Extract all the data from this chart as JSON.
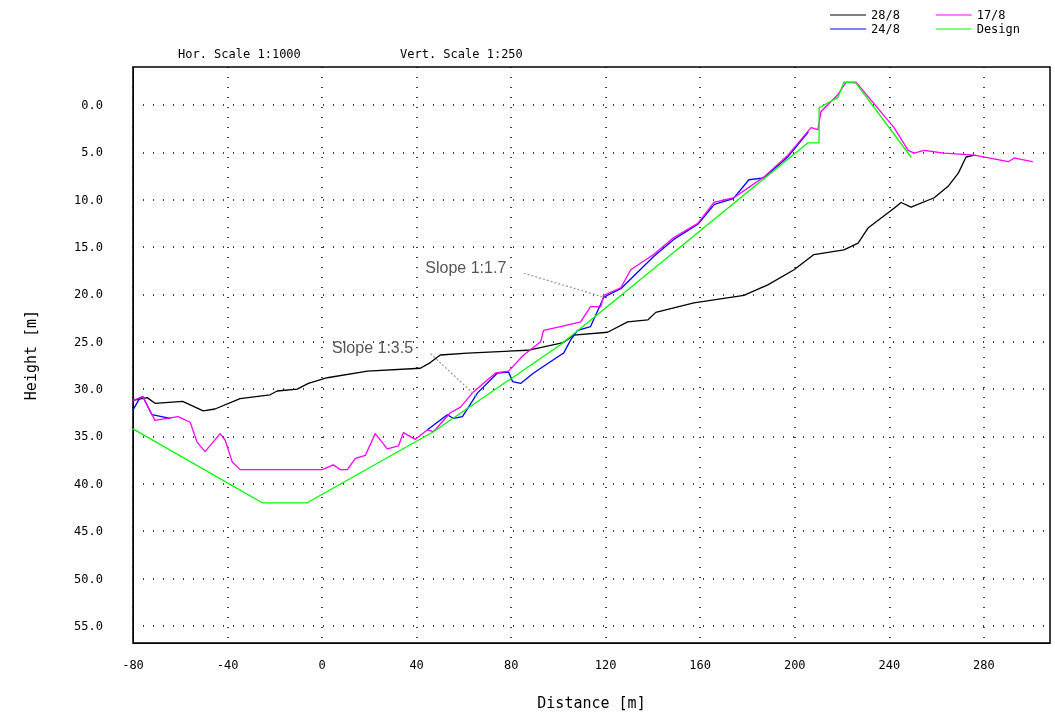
{
  "chart_data": {
    "type": "line",
    "xlabel": "Distance [m]",
    "ylabel": "Height [m]",
    "annotations": [
      "Hor. Scale 1:1000",
      "Vert. Scale 1:250",
      {
        "text": "Slope 1:1.7",
        "x": 119.2,
        "y": 20.3
      },
      {
        "text": "Slope 1:3.5",
        "x": 65.8,
        "y": 30.9
      }
    ],
    "xlim": [
      -80,
      308
    ],
    "xticks": [
      -80,
      -40,
      0,
      40,
      80,
      120,
      160,
      200,
      240,
      280
    ],
    "ylim": [
      56.8,
      -4
    ],
    "yticks": [
      {
        "value": 0,
        "label": "0.0"
      },
      {
        "value": 5,
        "label": "5.0"
      },
      {
        "value": 10,
        "label": "10.0"
      },
      {
        "value": 15,
        "label": "15.0"
      },
      {
        "value": 20,
        "label": "20.0"
      },
      {
        "value": 25,
        "label": "25.0"
      },
      {
        "value": 30,
        "label": "30.0"
      },
      {
        "value": 35,
        "label": "35.0"
      },
      {
        "value": 40,
        "label": "40.0"
      },
      {
        "value": 45,
        "label": "45.0"
      },
      {
        "value": 50,
        "label": "50.0"
      },
      {
        "value": 55,
        "label": "55.0"
      }
    ],
    "grid": true,
    "legend": "top right",
    "marker": "none",
    "line_style": "solid",
    "series": [
      {
        "name": "28/8",
        "color": "#000000",
        "x": [
          -80,
          -74,
          -70.7,
          -59,
          -50.3,
          -45.3,
          -34.7,
          -22,
          -19,
          -10.5,
          -5.8,
          2.2,
          19.2,
          41.6,
          45.8,
          50,
          61.5,
          87,
          102,
          106.4,
          120.8,
          129.3,
          137.8,
          141.2,
          157.3,
          178.5,
          188.6,
          199.7,
          208.1,
          220.8,
          226.8,
          231,
          242,
          245,
          249.2,
          259,
          264.9,
          269.2,
          272.5,
          276
        ],
        "values": [
          31.2,
          30.9,
          31.5,
          31.3,
          32.3,
          32.1,
          31,
          30.6,
          30.2,
          30,
          29.4,
          28.8,
          28.1,
          27.8,
          27.2,
          26.4,
          26.2,
          25.9,
          25.1,
          24.3,
          24,
          22.9,
          22.7,
          21.9,
          20.9,
          20.1,
          19,
          17.4,
          15.8,
          15.3,
          14.6,
          13,
          10.9,
          10.3,
          10.8,
          9.8,
          8.6,
          7.2,
          5.5,
          5.3
        ]
      },
      {
        "name": "24/8",
        "color": "#0000ff",
        "x": [
          -80,
          -77,
          -75.8,
          -72,
          -64.3,
          -62,
          44.6,
          53,
          55.6,
          59.4,
          65.8,
          74.2,
          78.9,
          80.6,
          84,
          89.5,
          100.9,
          102.2,
          105.2,
          108.1,
          113.6,
          119.2,
          126.4,
          140.3,
          148.8,
          159,
          166,
          174,
          180.6,
          187,
          197,
          205.6
        ],
        "values": [
          32.2,
          30.9,
          30.8,
          32.7,
          33.1,
          null,
          34.3,
          32.7,
          33.1,
          32.9,
          30.4,
          28.3,
          28.2,
          29.2,
          29.4,
          28.3,
          26.4,
          26.2,
          24.8,
          23.8,
          23.4,
          20.3,
          19.4,
          16,
          14.2,
          12.6,
          10.5,
          9.9,
          7.9,
          7.7,
          5.5,
          2.9
        ]
      },
      {
        "name": "17/8",
        "color": "#ff00ff",
        "x": [
          -80,
          -75.8,
          -73.6,
          -70.7,
          -60.9,
          -55.8,
          -52.9,
          -49.5,
          -43.1,
          -41,
          -38,
          -34.7,
          0.1,
          4.7,
          7.7,
          10.7,
          14.1,
          18.3,
          22.5,
          27.6,
          32.3,
          34.4,
          39.5,
          44.6,
          47.1,
          54.3,
          58.6,
          64,
          73.4,
          78.9,
          85.3,
          92.5,
          93.7,
          100.9,
          109.4,
          113.6,
          117.9,
          119.2,
          126.4,
          130.6,
          140.3,
          148.8,
          159,
          165.8,
          174.2,
          187,
          197.1,
          206.9,
          209.8,
          211.1,
          218.3,
          221.7,
          225.9,
          242,
          248,
          250.5,
          254.7,
          263.2,
          276,
          290.3,
          292.9,
          300.5
        ],
        "values": [
          31.2,
          30.8,
          31.9,
          33.3,
          32.9,
          33.5,
          35.6,
          36.6,
          34.7,
          35.4,
          37.7,
          38.5,
          38.5,
          38,
          38.5,
          38.5,
          37.3,
          37,
          34.7,
          36.3,
          36,
          34.6,
          35.3,
          34.3,
          34.5,
          32.5,
          31.9,
          30.3,
          28.3,
          28.1,
          26.4,
          25,
          23.8,
          23.4,
          22.9,
          21.3,
          21.3,
          20.1,
          19.3,
          17.4,
          15.8,
          14,
          12.5,
          10.3,
          9.8,
          7.6,
          5.3,
          2.4,
          2.6,
          0.7,
          -1.1,
          -2.4,
          -2.4,
          2.4,
          4.8,
          5.1,
          4.8,
          5.1,
          5.3,
          6,
          5.6,
          6
        ]
      },
      {
        "name": "Design",
        "color": "#00ff00",
        "x": [
          -80,
          -25.3,
          -6.3,
          47.1,
          101,
          205.6,
          210.3,
          210.3,
          218.3,
          220.8,
          225.9,
          249.2
        ],
        "values": [
          34.2,
          42,
          42,
          34.5,
          25.3,
          4,
          4,
          0.3,
          -0.8,
          -2.4,
          -2.3,
          5.5
        ]
      }
    ]
  }
}
